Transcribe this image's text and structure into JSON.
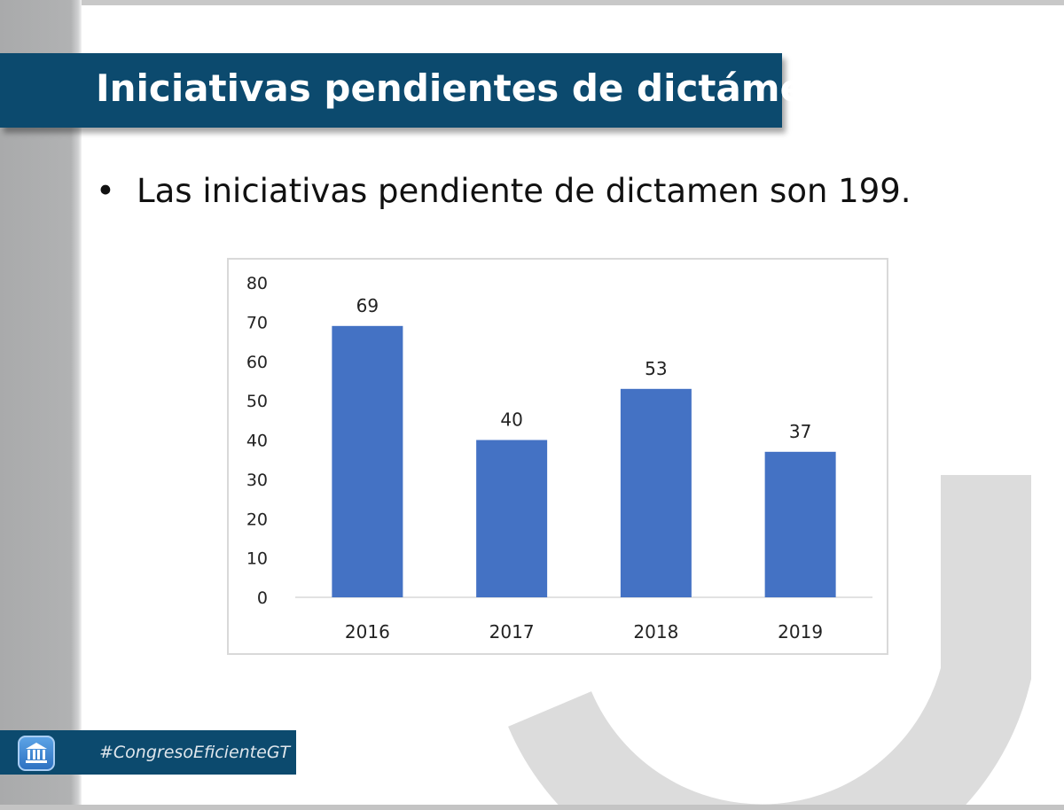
{
  "slide": {
    "title": "Iniciativas pendientes de dictámen",
    "bullet_symbol": "•",
    "bullet_text": "Las iniciativas pendiente de dictamen son 199.",
    "hashtag": "#CongresoEficienteGT",
    "logo_icon": "congress-building-icon",
    "colors": {
      "banner": "#0c4a6e",
      "bar": "#4472c4"
    }
  },
  "chart_data": {
    "type": "bar",
    "title": "",
    "xlabel": "",
    "ylabel": "",
    "categories": [
      "2016",
      "2017",
      "2018",
      "2019"
    ],
    "values": [
      69,
      40,
      53,
      37
    ],
    "data_labels": [
      "69",
      "40",
      "53",
      "37"
    ],
    "y_ticks": [
      "0",
      "10",
      "20",
      "30",
      "40",
      "50",
      "60",
      "70",
      "80"
    ],
    "ylim": [
      0,
      80
    ],
    "grid": false,
    "legend": "none"
  }
}
